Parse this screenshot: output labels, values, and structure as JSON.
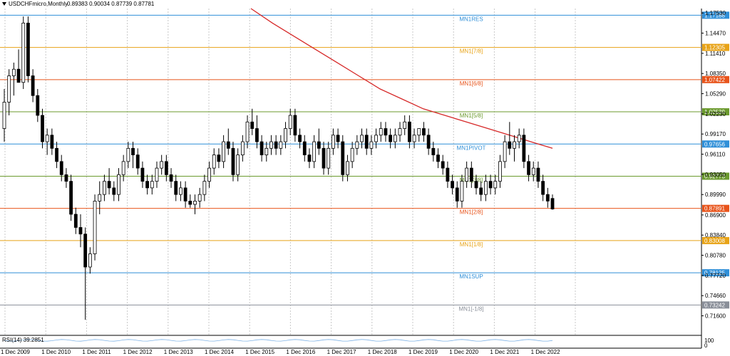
{
  "header": {
    "symbol": "USDCHFmicro,Monthly",
    "ohlc": "0.89383 0.90034 0.87739 0.87781"
  },
  "indicator": {
    "label": "RSI(14) 39.2851",
    "axis_top": "100",
    "axis_bottom": "0"
  },
  "chart_data": {
    "type": "candlestick",
    "series_label": "USDCHFmicro,Monthly",
    "last_ohlc": {
      "open": 0.89383,
      "high": 0.90034,
      "low": 0.87739,
      "close": 0.87781
    },
    "ylim": [
      0.695,
      1.182
    ],
    "y_ticks": [
      "1.17530",
      "1.14470",
      "1.11410",
      "1.08350",
      "1.05290",
      "1.02230",
      "0.99170",
      "0.96110",
      "0.93050",
      "0.89990",
      "0.86900",
      "0.83840",
      "0.80780",
      "0.77720",
      "0.74660",
      "0.71600"
    ],
    "x_ticks": [
      "1 Dec 2009",
      "1 Dec 2010",
      "1 Dec 2011",
      "1 Dec 2012",
      "1 Dec 2013",
      "1 Dec 2014",
      "1 Dec 2015",
      "1 Dec 2016",
      "1 Dec 2017",
      "1 Dec 2018",
      "1 Dec 2019",
      "1 Dec 2020",
      "1 Dec 2021",
      "1 Dec 2022"
    ],
    "candles": [
      [
        1.0,
        1.06,
        0.98,
        1.04
      ],
      [
        1.04,
        1.09,
        1.02,
        1.08
      ],
      [
        1.08,
        1.1,
        1.05,
        1.09
      ],
      [
        1.09,
        1.12,
        1.07,
        1.07
      ],
      [
        1.07,
        1.17,
        1.06,
        1.16
      ],
      [
        1.16,
        1.17,
        1.07,
        1.08
      ],
      [
        1.08,
        1.09,
        1.04,
        1.05
      ],
      [
        1.05,
        1.06,
        1.01,
        1.02
      ],
      [
        1.02,
        1.03,
        0.97,
        0.98
      ],
      [
        0.98,
        1.0,
        0.96,
        0.99
      ],
      [
        0.99,
        1.0,
        0.96,
        0.97
      ],
      [
        0.97,
        0.98,
        0.94,
        0.95
      ],
      [
        0.95,
        0.96,
        0.92,
        0.93
      ],
      [
        0.93,
        0.94,
        0.91,
        0.92
      ],
      [
        0.92,
        0.93,
        0.86,
        0.87
      ],
      [
        0.87,
        0.88,
        0.84,
        0.85
      ],
      [
        0.85,
        0.87,
        0.82,
        0.84
      ],
      [
        0.84,
        0.85,
        0.71,
        0.79
      ],
      [
        0.79,
        0.82,
        0.78,
        0.81
      ],
      [
        0.81,
        0.9,
        0.8,
        0.89
      ],
      [
        0.89,
        0.92,
        0.87,
        0.9
      ],
      [
        0.9,
        0.93,
        0.89,
        0.92
      ],
      [
        0.92,
        0.94,
        0.9,
        0.91
      ],
      [
        0.91,
        0.92,
        0.89,
        0.9
      ],
      [
        0.9,
        0.94,
        0.89,
        0.93
      ],
      [
        0.93,
        0.96,
        0.92,
        0.95
      ],
      [
        0.95,
        0.98,
        0.94,
        0.97
      ],
      [
        0.97,
        0.98,
        0.94,
        0.96
      ],
      [
        0.96,
        0.97,
        0.93,
        0.94
      ],
      [
        0.94,
        0.95,
        0.91,
        0.92
      ],
      [
        0.92,
        0.93,
        0.9,
        0.91
      ],
      [
        0.91,
        0.93,
        0.9,
        0.92
      ],
      [
        0.92,
        0.95,
        0.91,
        0.94
      ],
      [
        0.94,
        0.96,
        0.93,
        0.95
      ],
      [
        0.95,
        0.96,
        0.92,
        0.93
      ],
      [
        0.93,
        0.94,
        0.91,
        0.92
      ],
      [
        0.92,
        0.93,
        0.89,
        0.9
      ],
      [
        0.9,
        0.92,
        0.89,
        0.91
      ],
      [
        0.91,
        0.92,
        0.88,
        0.89
      ],
      [
        0.89,
        0.9,
        0.88,
        0.885
      ],
      [
        0.885,
        0.9,
        0.87,
        0.89
      ],
      [
        0.89,
        0.91,
        0.88,
        0.9
      ],
      [
        0.9,
        0.93,
        0.89,
        0.92
      ],
      [
        0.92,
        0.95,
        0.91,
        0.94
      ],
      [
        0.94,
        0.97,
        0.93,
        0.96
      ],
      [
        0.96,
        0.97,
        0.94,
        0.95
      ],
      [
        0.95,
        0.99,
        0.94,
        0.98
      ],
      [
        0.98,
        1.0,
        0.96,
        0.97
      ],
      [
        0.97,
        0.98,
        0.92,
        0.93
      ],
      [
        0.93,
        0.97,
        0.92,
        0.96
      ],
      [
        0.96,
        0.99,
        0.95,
        0.98
      ],
      [
        0.98,
        1.02,
        0.97,
        1.01
      ],
      [
        1.01,
        1.03,
        0.99,
        1.0
      ],
      [
        1.0,
        1.02,
        0.97,
        0.98
      ],
      [
        0.98,
        0.99,
        0.95,
        0.96
      ],
      [
        0.96,
        0.98,
        0.95,
        0.97
      ],
      [
        0.97,
        0.99,
        0.96,
        0.98
      ],
      [
        0.98,
        0.99,
        0.96,
        0.97
      ],
      [
        0.97,
        0.99,
        0.96,
        0.98
      ],
      [
        0.98,
        1.01,
        0.97,
        1.0
      ],
      [
        1.0,
        1.03,
        0.99,
        1.02
      ],
      [
        1.02,
        1.03,
        0.98,
        0.99
      ],
      [
        0.99,
        1.0,
        0.97,
        0.98
      ],
      [
        0.98,
        0.99,
        0.95,
        0.96
      ],
      [
        0.96,
        0.97,
        0.94,
        0.95
      ],
      [
        0.95,
        0.99,
        0.94,
        0.98
      ],
      [
        0.98,
        1.0,
        0.96,
        0.97
      ],
      [
        0.97,
        0.98,
        0.93,
        0.94
      ],
      [
        0.94,
        0.98,
        0.93,
        0.97
      ],
      [
        0.97,
        1.0,
        0.96,
        0.99
      ],
      [
        0.99,
        1.0,
        0.97,
        0.98
      ],
      [
        0.98,
        0.99,
        0.92,
        0.93
      ],
      [
        0.93,
        0.96,
        0.92,
        0.95
      ],
      [
        0.95,
        0.98,
        0.94,
        0.97
      ],
      [
        0.97,
        0.99,
        0.96,
        0.98
      ],
      [
        0.98,
        1.0,
        0.97,
        0.99
      ],
      [
        0.99,
        1.0,
        0.96,
        0.97
      ],
      [
        0.97,
        0.99,
        0.96,
        0.98
      ],
      [
        0.98,
        1.0,
        0.97,
        0.99
      ],
      [
        0.99,
        1.01,
        0.98,
        1.0
      ],
      [
        1.0,
        1.01,
        0.98,
        0.99
      ],
      [
        0.99,
        1.0,
        0.97,
        0.98
      ],
      [
        0.98,
        1.0,
        0.97,
        0.99
      ],
      [
        0.99,
        1.01,
        0.98,
        1.0
      ],
      [
        1.0,
        1.02,
        0.99,
        1.01
      ],
      [
        1.01,
        1.02,
        0.97,
        0.98
      ],
      [
        0.98,
        1.0,
        0.97,
        0.99
      ],
      [
        0.99,
        1.0,
        0.98,
        1.0
      ],
      [
        1.0,
        1.01,
        0.98,
        0.99
      ],
      [
        0.99,
        1.0,
        0.96,
        0.97
      ],
      [
        0.97,
        0.98,
        0.95,
        0.96
      ],
      [
        0.96,
        0.97,
        0.94,
        0.95
      ],
      [
        0.95,
        0.96,
        0.93,
        0.94
      ],
      [
        0.94,
        0.95,
        0.91,
        0.92
      ],
      [
        0.92,
        0.93,
        0.9,
        0.91
      ],
      [
        0.91,
        0.92,
        0.88,
        0.89
      ],
      [
        0.89,
        0.93,
        0.88,
        0.92
      ],
      [
        0.92,
        0.95,
        0.91,
        0.94
      ],
      [
        0.94,
        0.95,
        0.91,
        0.92
      ],
      [
        0.92,
        0.93,
        0.9,
        0.91
      ],
      [
        0.91,
        0.92,
        0.89,
        0.9
      ],
      [
        0.9,
        0.93,
        0.89,
        0.92
      ],
      [
        0.92,
        0.93,
        0.9,
        0.91
      ],
      [
        0.91,
        0.93,
        0.9,
        0.92
      ],
      [
        0.92,
        0.96,
        0.91,
        0.95
      ],
      [
        0.95,
        0.99,
        0.94,
        0.98
      ],
      [
        0.98,
        1.01,
        0.96,
        0.97
      ],
      [
        0.97,
        0.99,
        0.95,
        0.98
      ],
      [
        0.98,
        1.0,
        0.97,
        0.99
      ],
      [
        0.99,
        1.0,
        0.94,
        0.95
      ],
      [
        0.95,
        0.96,
        0.92,
        0.93
      ],
      [
        0.93,
        0.95,
        0.92,
        0.94
      ],
      [
        0.94,
        0.95,
        0.91,
        0.92
      ],
      [
        0.92,
        0.93,
        0.89,
        0.9
      ],
      [
        0.9,
        0.91,
        0.88,
        0.89
      ],
      [
        0.894,
        0.9,
        0.877,
        0.878
      ]
    ],
    "moving_average": {
      "color": "#d62828",
      "values": [
        1.182,
        1.16,
        1.14,
        1.12,
        1.1,
        1.08,
        1.06,
        1.045,
        1.03,
        1.02,
        1.01,
        1.0,
        0.99,
        0.98,
        0.97
      ]
    },
    "levels": [
      {
        "label": "MN1RES",
        "value": "1.17188",
        "color": "#2f8fd8"
      },
      {
        "label": "MN1[7/8]",
        "value": "1.12305",
        "color": "#e8a317"
      },
      {
        "label": "MN1[6/8]",
        "value": "1.07422",
        "color": "#e8541b"
      },
      {
        "label": "MN1[5/8]",
        "value": "1.02539",
        "color": "#6b9a2e"
      },
      {
        "label": "MN1PIVOT",
        "value": "0.97656",
        "color": "#2f8fd8"
      },
      {
        "label": "MN1[3/8]",
        "value": "0.92773",
        "color": "#6b9a2e"
      },
      {
        "label": "MN1[2/8]",
        "value": "0.87891",
        "color": "#e8541b"
      },
      {
        "label": "MN1[1/8]",
        "value": "0.83008",
        "color": "#e8a317"
      },
      {
        "label": "MN1SUP",
        "value": "0.78125",
        "color": "#2f8fd8"
      },
      {
        "label": "MN1[-1/8]",
        "value": "0.73242",
        "color": "#8a8f99"
      }
    ],
    "grid": true
  }
}
